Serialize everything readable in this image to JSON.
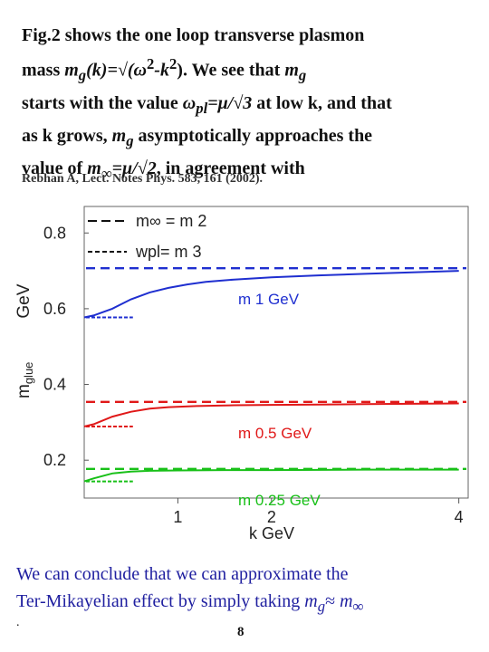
{
  "intro": {
    "line1": "Fig.2 shows the one loop transverse plasmon",
    "line2_a": "mass ",
    "line2_var": "m",
    "line2_sub": "g",
    "line2_b": "(k)",
    "line2_eq": "=√(ω",
    "line2_sup": "2",
    "line2_c": "-k",
    "line2_sup2": "2",
    "line2_d": "). We see that ",
    "line2_e": "m",
    "line2_sub2": "g",
    "line3_a": "starts with the value ",
    "line3_var": "ω",
    "line3_sub": "pl",
    "line3_b": "=μ/√3",
    "line3_c": " at low k, and that",
    "line4_a": "as k grows, ",
    "line4_var": "m",
    "line4_sub": "g",
    "line4_b": " asymptotically approaches the",
    "line5_a": "value of  ",
    "line5_var": "m",
    "line5_sub": "∞",
    "line5_b": "=μ/√2",
    "line5_c": ", in agreement with"
  },
  "reference": "Rebhan A, Lect. Notes Phys. 583, 161 (2002).",
  "conclusion": {
    "line1": "We can conclude that we can approximate the",
    "line2_a": "Ter-Mikayelian effect by simply taking  ",
    "line2_var": "m",
    "line2_sub": "g",
    "line2_sym": "≈",
    "line2_b": " m",
    "line2_sub2": "∞"
  },
  "page_number": "8",
  "stray_dot": ".",
  "chart_data": {
    "type": "line",
    "xlabel": "k GeV",
    "ylabel": "m",
    "ylabel_sub": "glue",
    "ylabel_unit": "GeV",
    "xlim": [
      0,
      4.1
    ],
    "ylim": [
      0.1,
      0.87
    ],
    "x_ticks": [
      {
        "value": 1,
        "label": "1"
      },
      {
        "value": 2,
        "label": "2"
      },
      {
        "value": 4,
        "label": "4"
      }
    ],
    "y_ticks": [
      {
        "value": 0.2,
        "label": "0.2"
      },
      {
        "value": 0.4,
        "label": "0.4"
      },
      {
        "value": 0.6,
        "label": "0.6"
      },
      {
        "value": 0.8,
        "label": "0.8"
      }
    ],
    "legend": [
      {
        "style": "long-dash",
        "text": "m∞ = m  2"
      },
      {
        "style": "short-dash",
        "text": "wpl= m  3"
      }
    ],
    "legend_position": "top-left",
    "series": [
      {
        "name": "m = 1 GeV",
        "color": "#1f2fd0",
        "k": [
          0.0,
          0.1,
          0.3,
          0.5,
          0.7,
          0.9,
          1.1,
          1.3,
          1.6,
          2.0,
          2.5,
          3.0,
          3.5,
          4.0
        ],
        "m": [
          0.577,
          0.582,
          0.6,
          0.625,
          0.643,
          0.655,
          0.664,
          0.671,
          0.677,
          0.683,
          0.688,
          0.692,
          0.696,
          0.7
        ],
        "asymptote": 0.707,
        "plasma": 0.577,
        "label": "m  1 GeV"
      },
      {
        "name": "m = 0.5 GeV",
        "color": "#e01818",
        "k": [
          0.0,
          0.1,
          0.3,
          0.5,
          0.7,
          0.9,
          1.2,
          1.6,
          2.0,
          2.5,
          3.0,
          3.5,
          4.0
        ],
        "m": [
          0.289,
          0.295,
          0.315,
          0.328,
          0.336,
          0.34,
          0.343,
          0.345,
          0.346,
          0.347,
          0.348,
          0.349,
          0.35
        ],
        "asymptote": 0.354,
        "plasma": 0.289,
        "label": "m  0.5 GeV"
      },
      {
        "name": "m = 0.25 GeV",
        "color": "#18c018",
        "k": [
          0.0,
          0.1,
          0.3,
          0.5,
          0.7,
          1.0,
          1.5,
          2.0,
          3.0,
          4.0
        ],
        "m": [
          0.144,
          0.152,
          0.165,
          0.17,
          0.172,
          0.173,
          0.174,
          0.174,
          0.175,
          0.175
        ],
        "asymptote": 0.177,
        "plasma": 0.144,
        "label": "m  0.25 GeV"
      }
    ]
  }
}
